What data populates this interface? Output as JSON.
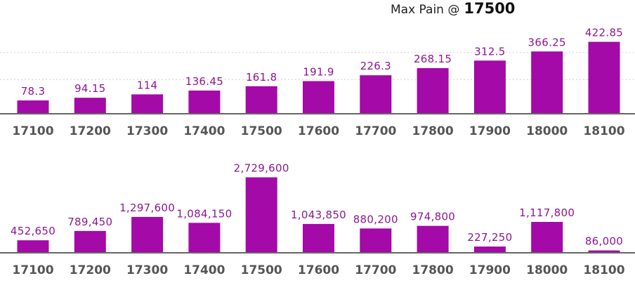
{
  "header": {
    "label": "Max Pain @",
    "value": "17500"
  },
  "colors": {
    "bar": "#a30aa7",
    "data_label": "#8e1690"
  },
  "chart_data": [
    {
      "type": "bar",
      "categories": [
        "17100",
        "17200",
        "17300",
        "17400",
        "17500",
        "17600",
        "17700",
        "17800",
        "17900",
        "18000",
        "18100"
      ],
      "values": [
        78.3,
        94.15,
        114,
        136.45,
        161.8,
        191.9,
        226.3,
        268.15,
        312.5,
        366.25,
        422.85
      ],
      "data_labels": [
        "78.3",
        "94.15",
        "114",
        "136.45",
        "161.8",
        "191.9",
        "226.3",
        "268.15",
        "312.5",
        "366.25",
        "422.85"
      ],
      "ylim": [
        0,
        520
      ],
      "gridlines": [
        200,
        360
      ],
      "grid": true
    },
    {
      "type": "bar",
      "categories": [
        "17100",
        "17200",
        "17300",
        "17400",
        "17500",
        "17600",
        "17700",
        "17800",
        "17900",
        "18000",
        "18100"
      ],
      "values": [
        452650,
        789450,
        1297600,
        1084150,
        2729600,
        1043850,
        880200,
        974800,
        227250,
        1117800,
        86000
      ],
      "data_labels": [
        "452,650",
        "789,450",
        "1,297,600",
        "1,084,150",
        "2,729,600",
        "1,043,850",
        "880,200",
        "974,800",
        "227,250",
        "1,117,800",
        "86,000"
      ],
      "ylim": [
        0,
        3200000
      ],
      "gridlines": [],
      "grid": false
    }
  ]
}
